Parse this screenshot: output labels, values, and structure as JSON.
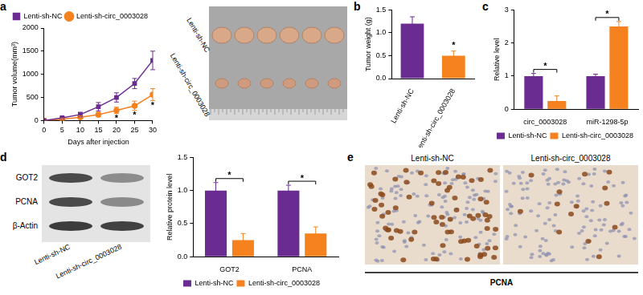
{
  "chart_data": [
    {
      "panel": "a",
      "type": "line",
      "x": [
        0,
        5,
        10,
        15,
        20,
        25,
        30
      ],
      "xlim": [
        0,
        30
      ],
      "xticks": [
        0,
        5,
        10,
        15,
        20,
        25,
        30
      ],
      "ylim": [
        0,
        2000
      ],
      "yticks": [
        0,
        500,
        1000,
        1500,
        2000
      ],
      "x_label": "Days after injection",
      "y_label": "Tumor volume(mm³)",
      "legend": "upper left",
      "grid": false,
      "series": [
        {
          "name": "Lenti-sh-NC",
          "color": "#6b2c91",
          "marker": "square",
          "values": [
            0,
            60,
            130,
            300,
            500,
            800,
            1300
          ],
          "errors": [
            0,
            20,
            50,
            90,
            100,
            110,
            200
          ]
        },
        {
          "name": "Lenti-sh-circ_0003028",
          "color": "#f5821f",
          "marker": "circle",
          "values": [
            0,
            30,
            70,
            130,
            220,
            320,
            560
          ],
          "errors": [
            0,
            15,
            30,
            50,
            70,
            100,
            130
          ]
        }
      ],
      "annotations": [
        {
          "x": 20,
          "text": "*"
        },
        {
          "x": 25,
          "text": "*"
        },
        {
          "x": 30,
          "text": "*"
        }
      ]
    },
    {
      "panel": "b",
      "type": "bar",
      "categories": [
        "Lenti-sh-NC",
        "Lenti-sh-circ_0003028"
      ],
      "values": [
        1.2,
        0.5
      ],
      "errors": [
        0.15,
        0.1
      ],
      "colors": [
        "#6b2c91",
        "#f5821f"
      ],
      "ylim": [
        0,
        1.5
      ],
      "yticks": [
        {
          "value": 0,
          "label": "0.0"
        },
        {
          "value": 0.5,
          "label": "0.5"
        },
        {
          "value": 1,
          "label": "1.0"
        },
        {
          "value": 1.5,
          "label": "1.5"
        }
      ],
      "y_label": "Tumor weight (g)",
      "grid": false,
      "annotations": [
        {
          "category": "Lenti-sh-circ_0003028",
          "text": "*"
        }
      ]
    },
    {
      "panel": "c",
      "type": "bar",
      "categories": [
        "circ_0003028",
        "miR-1298-5p"
      ],
      "series": [
        {
          "name": "Lenti-sh-NC",
          "color": "#6b2c91",
          "values": [
            1.0,
            1.0
          ],
          "errors": [
            0.08,
            0.06
          ]
        },
        {
          "name": "Lenti-sh-circ_0003028",
          "color": "#f5821f",
          "values": [
            0.25,
            2.5
          ],
          "errors": [
            0.15,
            0.15
          ]
        }
      ],
      "ylim": [
        0,
        3
      ],
      "yticks": [
        0,
        1,
        2,
        3
      ],
      "y_label": "Relative level",
      "legend": "bottom",
      "grid": false,
      "annotations": [
        {
          "category": "circ_0003028",
          "text": "*"
        },
        {
          "category": "miR-1298-5p",
          "text": "*"
        }
      ]
    },
    {
      "type": "bar",
      "categories": [
        "GOT2",
        "PCNA"
      ],
      "series": [
        {
          "name": "Lenti-sh-NC",
          "color": "#6b2c91",
          "values": [
            1.0,
            1.0
          ],
          "errors": [
            0.12,
            0.08
          ]
        },
        {
          "name": "Lenti-sh-circ_0003028",
          "color": "#f5821f",
          "values": [
            0.25,
            0.35
          ],
          "errors": [
            0.1,
            0.1
          ]
        }
      ],
      "ylim": [
        0,
        1.5
      ],
      "yticks": [
        {
          "value": 0,
          "label": "0.0"
        },
        {
          "value": 0.5,
          "label": "0.5"
        },
        {
          "value": 1,
          "label": "1.0"
        },
        {
          "value": 1.5,
          "label": "1.5"
        }
      ],
      "y_label": "Relative protein level",
      "legend": "bottom",
      "grid": false,
      "annotations": [
        {
          "category": "GOT2",
          "text": "*"
        },
        {
          "category": "PCNA",
          "text": "*"
        }
      ]
    }
  ],
  "images": {
    "tumor_photo": {
      "rows": [
        "Lenti-sh-NC",
        "Lenti-sh-circ_0003028"
      ]
    },
    "western_blot": {
      "panel": "d",
      "rows": [
        "GOT2",
        "PCNA",
        "β-Actin"
      ],
      "columns": [
        "Lenti-sh-NC",
        "Lenti-sh-circ_0003028"
      ]
    },
    "ihc": {
      "panel": "e",
      "columns": [
        "Lenti-sh-NC",
        "Lenti-sh-circ_0003028"
      ],
      "caption": "PCNA"
    }
  }
}
